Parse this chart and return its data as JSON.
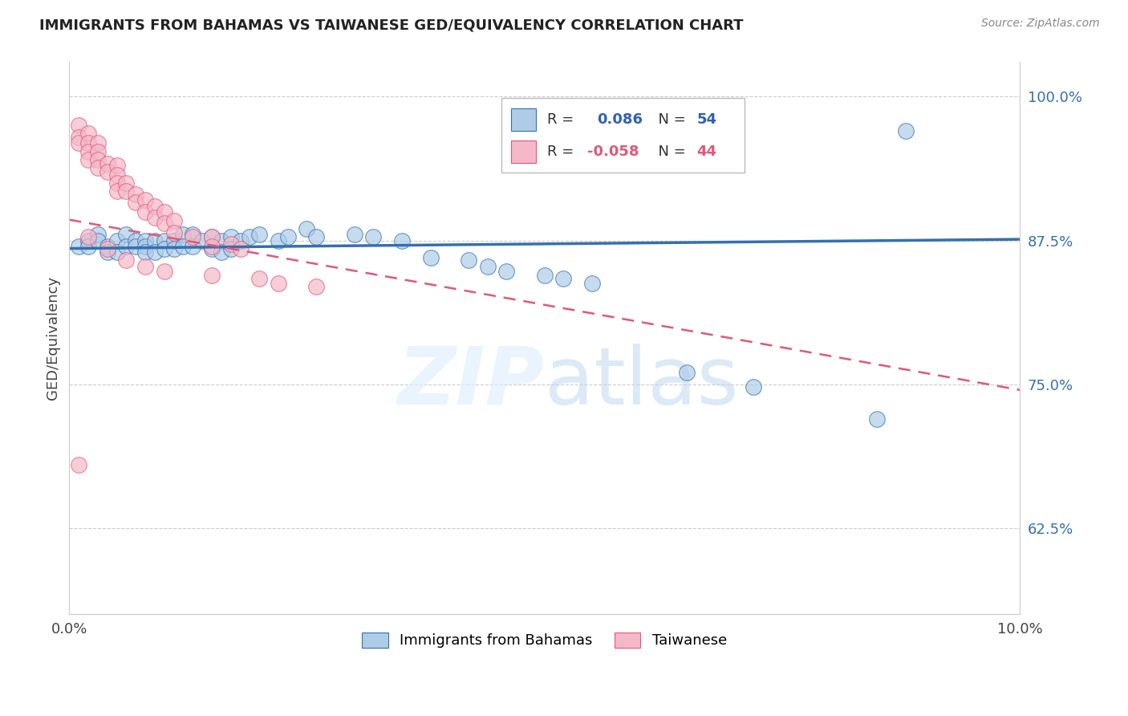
{
  "title": "IMMIGRANTS FROM BAHAMAS VS TAIWANESE GED/EQUIVALENCY CORRELATION CHART",
  "source": "Source: ZipAtlas.com",
  "ylabel": "GED/Equivalency",
  "ytick_labels": [
    "62.5%",
    "75.0%",
    "87.5%",
    "100.0%"
  ],
  "ytick_values": [
    0.625,
    0.75,
    0.875,
    1.0
  ],
  "xlim": [
    0.0,
    0.1
  ],
  "ylim": [
    0.55,
    1.03
  ],
  "watermark": "ZIPatlas",
  "blue_scatter_x": [
    0.001,
    0.002,
    0.002,
    0.003,
    0.003,
    0.004,
    0.004,
    0.005,
    0.005,
    0.006,
    0.006,
    0.007,
    0.007,
    0.008,
    0.008,
    0.008,
    0.009,
    0.009,
    0.01,
    0.01,
    0.011,
    0.011,
    0.012,
    0.012,
    0.013,
    0.013,
    0.014,
    0.015,
    0.015,
    0.016,
    0.016,
    0.017,
    0.017,
    0.018,
    0.019,
    0.02,
    0.022,
    0.023,
    0.025,
    0.026,
    0.03,
    0.032,
    0.035,
    0.038,
    0.042,
    0.044,
    0.046,
    0.05,
    0.052,
    0.055,
    0.065,
    0.072,
    0.085,
    0.088
  ],
  "blue_scatter_y": [
    0.87,
    0.875,
    0.87,
    0.88,
    0.875,
    0.87,
    0.865,
    0.875,
    0.865,
    0.88,
    0.87,
    0.875,
    0.87,
    0.875,
    0.87,
    0.865,
    0.875,
    0.865,
    0.875,
    0.868,
    0.875,
    0.868,
    0.88,
    0.87,
    0.88,
    0.87,
    0.875,
    0.878,
    0.868,
    0.875,
    0.865,
    0.878,
    0.868,
    0.875,
    0.878,
    0.88,
    0.875,
    0.878,
    0.885,
    0.878,
    0.88,
    0.878,
    0.875,
    0.86,
    0.858,
    0.852,
    0.848,
    0.845,
    0.842,
    0.838,
    0.76,
    0.748,
    0.72,
    0.97
  ],
  "pink_scatter_x": [
    0.001,
    0.001,
    0.001,
    0.002,
    0.002,
    0.002,
    0.002,
    0.003,
    0.003,
    0.003,
    0.003,
    0.004,
    0.004,
    0.005,
    0.005,
    0.005,
    0.005,
    0.006,
    0.006,
    0.007,
    0.007,
    0.008,
    0.008,
    0.009,
    0.009,
    0.01,
    0.01,
    0.011,
    0.011,
    0.013,
    0.015,
    0.015,
    0.017,
    0.018,
    0.002,
    0.004,
    0.006,
    0.008,
    0.01,
    0.015,
    0.02,
    0.022,
    0.026,
    0.001
  ],
  "pink_scatter_y": [
    0.975,
    0.965,
    0.96,
    0.968,
    0.96,
    0.952,
    0.945,
    0.96,
    0.952,
    0.945,
    0.938,
    0.942,
    0.935,
    0.94,
    0.932,
    0.925,
    0.918,
    0.925,
    0.918,
    0.915,
    0.908,
    0.91,
    0.9,
    0.905,
    0.895,
    0.9,
    0.89,
    0.892,
    0.882,
    0.878,
    0.878,
    0.87,
    0.872,
    0.868,
    0.878,
    0.868,
    0.858,
    0.852,
    0.848,
    0.845,
    0.842,
    0.838,
    0.835,
    0.68
  ],
  "blue_color": "#aecce8",
  "pink_color": "#f5b8c8",
  "blue_line_color": "#3470b0",
  "pink_line_color": "#e05878",
  "right_axis_color": "#3470b0",
  "grid_color": "#cccccc",
  "title_color": "#222222",
  "source_color": "#888888",
  "legend_blue_r": "R =  0.086",
  "legend_blue_n": "N = 54",
  "legend_pink_r": "R = -0.058",
  "legend_pink_n": "N = 44",
  "blue_trend_x0": 0.0,
  "blue_trend_y0": 0.868,
  "blue_trend_x1": 0.1,
  "blue_trend_y1": 0.876,
  "pink_trend_x0": 0.0,
  "pink_trend_y0": 0.893,
  "pink_trend_x1": 0.1,
  "pink_trend_y1": 0.745
}
